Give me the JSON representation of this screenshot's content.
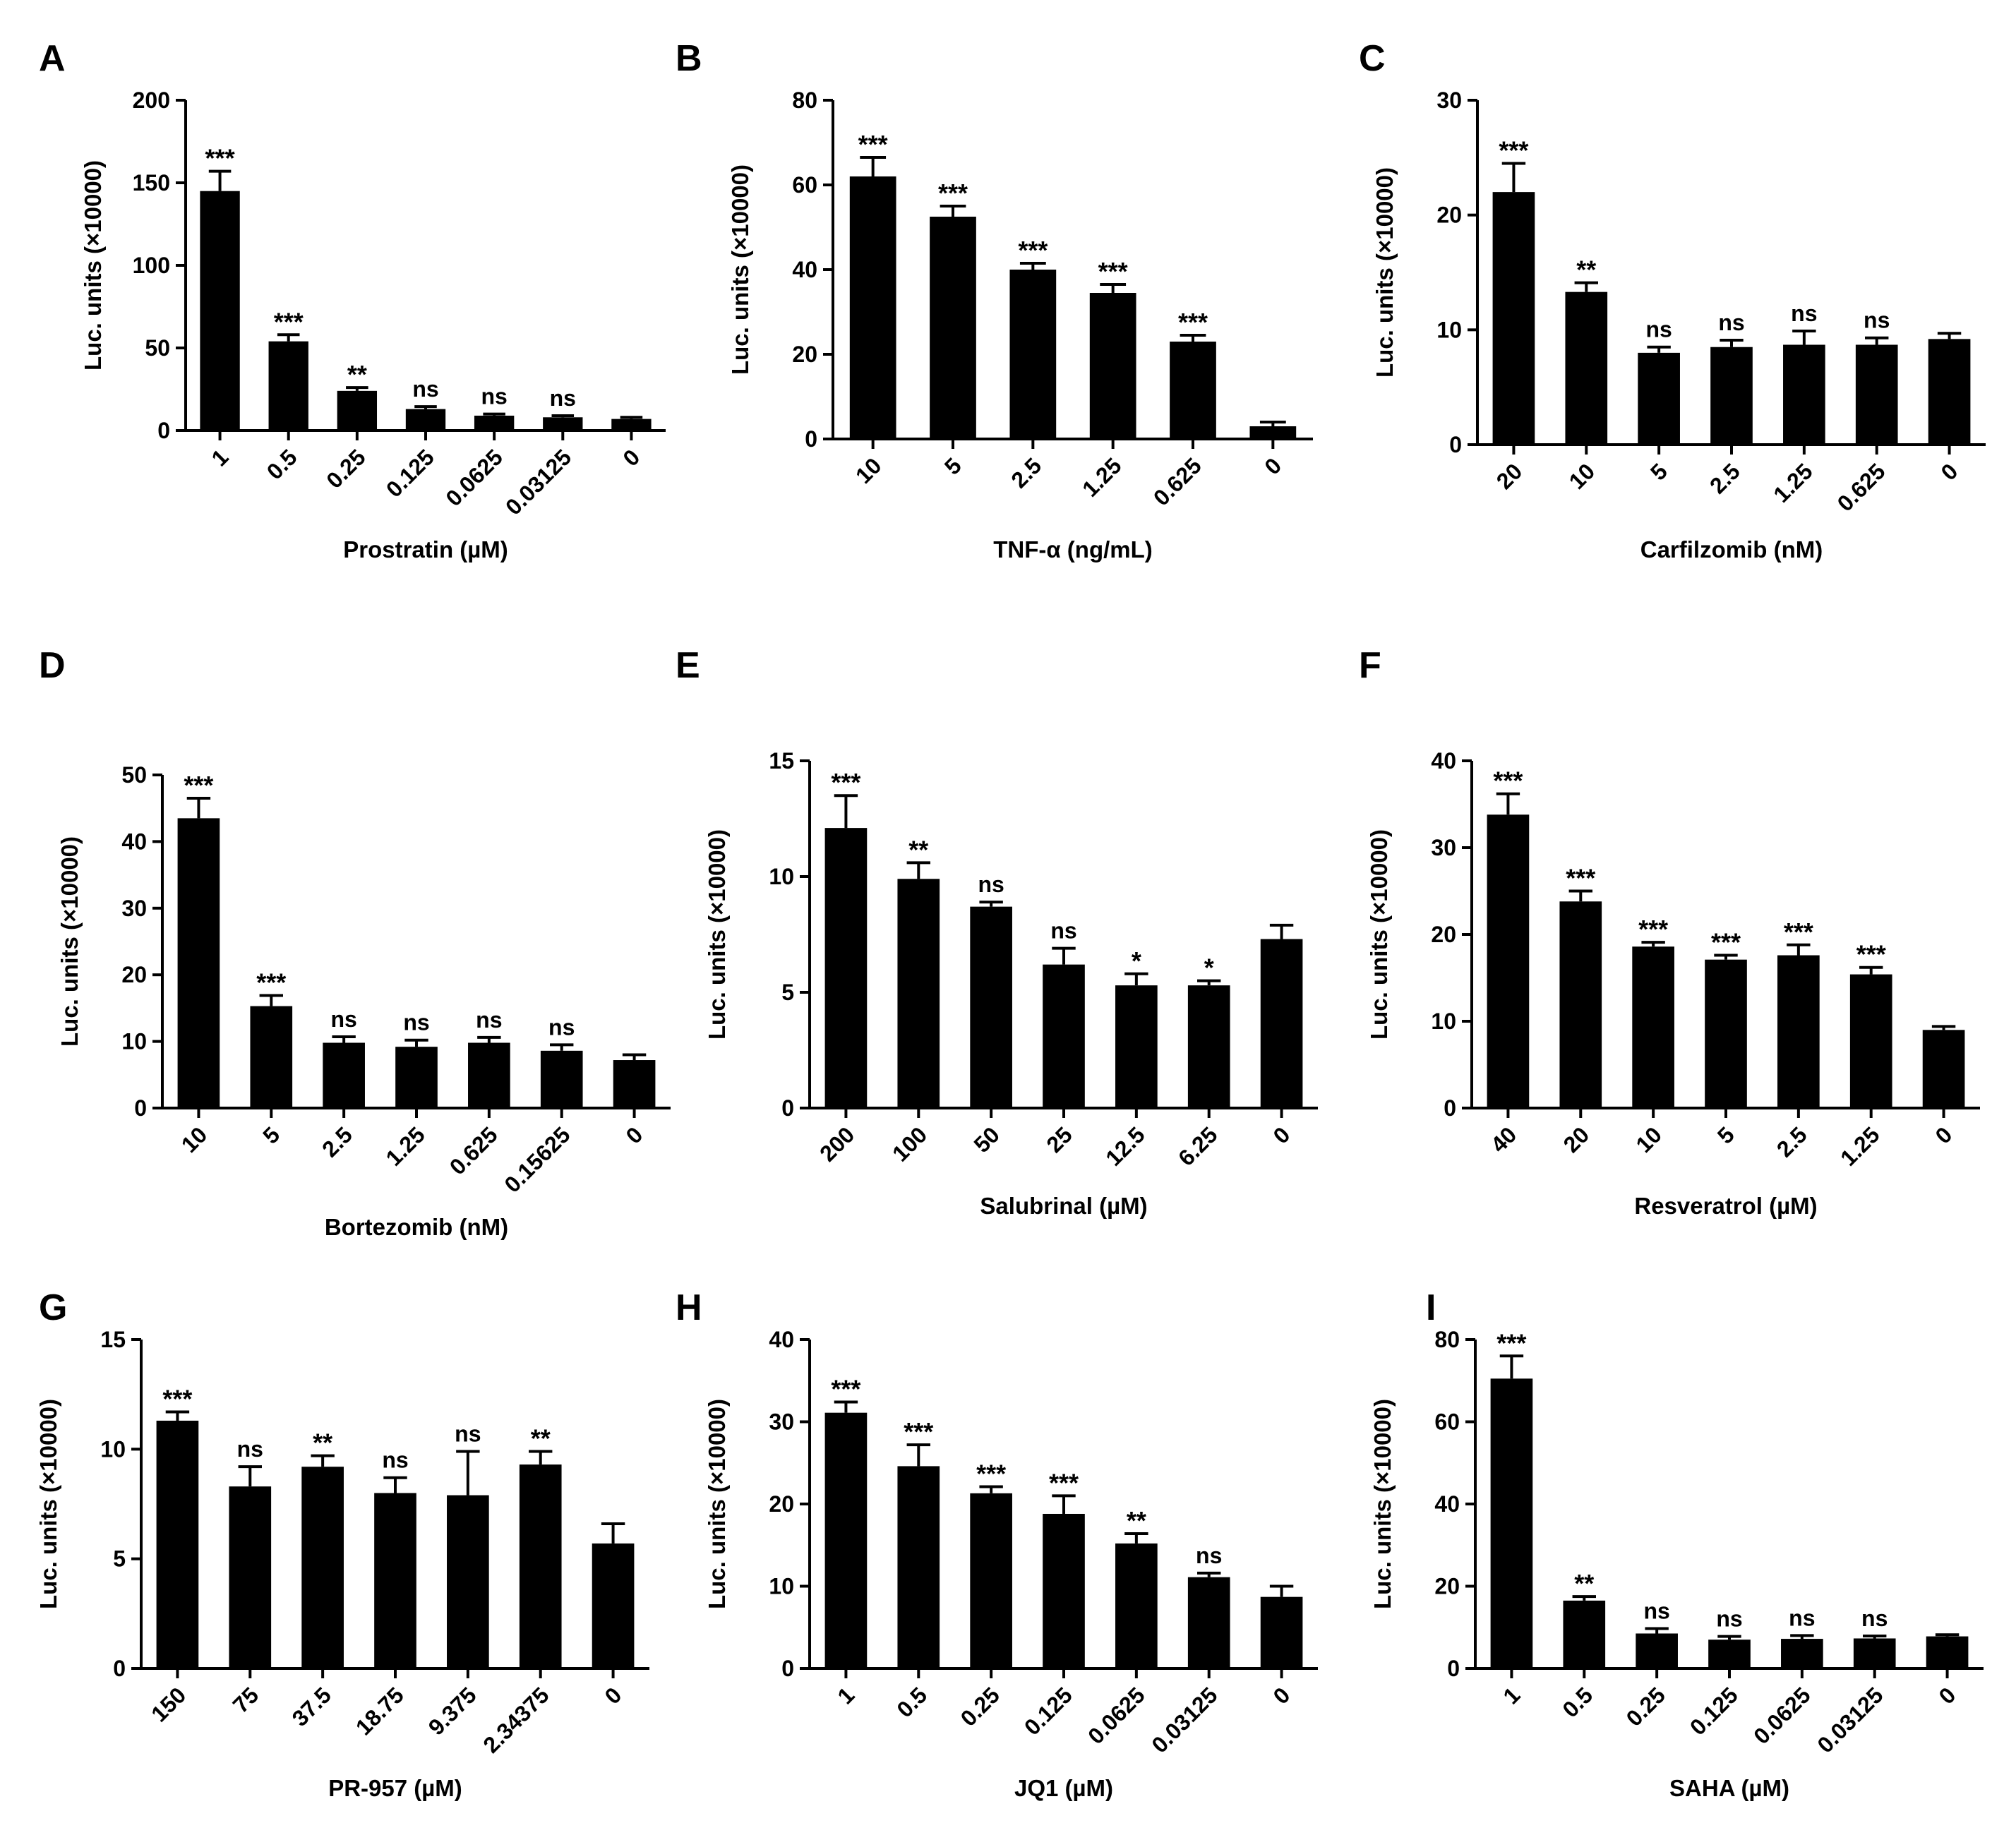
{
  "figure": {
    "ylabel": "Luc. units (×10000)"
  },
  "chart_data": [
    {
      "panel": "A",
      "type": "bar",
      "title": "",
      "xlabel": "Prostratin (µM)",
      "ylabel": "Luc. units (×10000)",
      "ylim": [
        0,
        200
      ],
      "yticks": [
        0,
        50,
        100,
        150,
        200
      ],
      "categories": [
        "1",
        "0.5",
        "0.25",
        "0.125",
        "0.0625",
        "0.03125",
        "0"
      ],
      "values": [
        145,
        54,
        24,
        13,
        9,
        8,
        7
      ],
      "errors": [
        12,
        4,
        2,
        1.5,
        1,
        1,
        1
      ],
      "significance": [
        "***",
        "***",
        "**",
        "ns",
        "ns",
        "ns",
        ""
      ]
    },
    {
      "panel": "B",
      "type": "bar",
      "title": "",
      "xlabel": "TNF-α (ng/mL)",
      "ylabel": "Luc. units (×10000)",
      "ylim": [
        0,
        80
      ],
      "yticks": [
        0,
        20,
        40,
        60,
        80
      ],
      "categories": [
        "10",
        "5",
        "2.5",
        "1.25",
        "0.625",
        "0"
      ],
      "values": [
        62,
        52.5,
        40,
        34.5,
        23,
        3
      ],
      "errors": [
        4.5,
        2.5,
        1.5,
        2,
        1.5,
        1
      ],
      "significance": [
        "***",
        "***",
        "***",
        "***",
        "***",
        ""
      ]
    },
    {
      "panel": "C",
      "type": "bar",
      "title": "",
      "xlabel": "Carfilzomib (nM)",
      "ylabel": "Luc. units (×10000)",
      "ylim": [
        0,
        30
      ],
      "yticks": [
        0,
        10,
        20,
        30
      ],
      "categories": [
        "20",
        "10",
        "5",
        "2.5",
        "1.25",
        "0.625",
        "0"
      ],
      "values": [
        22,
        13.3,
        8,
        8.5,
        8.7,
        8.7,
        9.2
      ],
      "errors": [
        2.5,
        0.8,
        0.5,
        0.6,
        1.2,
        0.6,
        0.5
      ],
      "significance": [
        "***",
        "**",
        "ns",
        "ns",
        "ns",
        "ns",
        ""
      ]
    },
    {
      "panel": "D",
      "type": "bar",
      "title": "",
      "xlabel": "Bortezomib (nM)",
      "ylabel": "Luc. units (×10000)",
      "ylim": [
        0,
        50
      ],
      "yticks": [
        0,
        10,
        20,
        30,
        40,
        50
      ],
      "categories": [
        "10",
        "5",
        "2.5",
        "1.25",
        "0.625",
        "0.15625",
        "0"
      ],
      "values": [
        43.5,
        15.3,
        9.8,
        9.2,
        9.8,
        8.6,
        7.2
      ],
      "errors": [
        3,
        1.6,
        0.9,
        1,
        0.8,
        0.9,
        0.8
      ],
      "significance": [
        "***",
        "***",
        "ns",
        "ns",
        "ns",
        "ns",
        ""
      ]
    },
    {
      "panel": "E",
      "type": "bar",
      "title": "",
      "xlabel": "Salubrinal (µM)",
      "ylabel": "Luc. units (×10000)",
      "ylim": [
        0,
        15
      ],
      "yticks": [
        0,
        5,
        10,
        15
      ],
      "categories": [
        "200",
        "100",
        "50",
        "25",
        "12.5",
        "6.25",
        "0"
      ],
      "values": [
        12.1,
        9.9,
        8.7,
        6.2,
        5.3,
        5.3,
        7.3
      ],
      "errors": [
        1.4,
        0.7,
        0.2,
        0.7,
        0.5,
        0.2,
        0.6
      ],
      "significance": [
        "***",
        "**",
        "ns",
        "ns",
        "*",
        "*",
        ""
      ]
    },
    {
      "panel": "F",
      "type": "bar",
      "title": "",
      "xlabel": "Resveratrol (µM)",
      "ylabel": "Luc. units (×10000)",
      "ylim": [
        0,
        40
      ],
      "yticks": [
        0,
        10,
        20,
        30,
        40
      ],
      "categories": [
        "40",
        "20",
        "10",
        "5",
        "2.5",
        "1.25",
        "0"
      ],
      "values": [
        33.8,
        23.8,
        18.6,
        17.1,
        17.6,
        15.4,
        9
      ],
      "errors": [
        2.4,
        1.2,
        0.5,
        0.5,
        1.2,
        0.8,
        0.4
      ],
      "significance": [
        "***",
        "***",
        "***",
        "***",
        "***",
        "***",
        ""
      ]
    },
    {
      "panel": "G",
      "type": "bar",
      "title": "",
      "xlabel": "PR-957 (µM)",
      "ylabel": "Luc. units (×10000)",
      "ylim": [
        0,
        15
      ],
      "yticks": [
        0,
        5,
        10,
        15
      ],
      "categories": [
        "150",
        "75",
        "37.5",
        "18.75",
        "9.375",
        "2.34375",
        "0"
      ],
      "values": [
        11.3,
        8.3,
        9.2,
        8,
        7.9,
        9.3,
        5.7
      ],
      "errors": [
        0.4,
        0.9,
        0.5,
        0.7,
        2,
        0.6,
        0.9
      ],
      "significance": [
        "***",
        "ns",
        "**",
        "ns",
        "ns",
        "**",
        ""
      ]
    },
    {
      "panel": "H",
      "type": "bar",
      "title": "",
      "xlabel": "JQ1 (µM)",
      "ylabel": "Luc. units (×10000)",
      "ylim": [
        0,
        40
      ],
      "yticks": [
        0,
        10,
        20,
        30,
        40
      ],
      "categories": [
        "1",
        "0.5",
        "0.25",
        "0.125",
        "0.0625",
        "0.03125",
        "0"
      ],
      "values": [
        31.1,
        24.6,
        21.3,
        18.8,
        15.2,
        11.1,
        8.7
      ],
      "errors": [
        1.3,
        2.6,
        0.8,
        2.2,
        1.2,
        0.5,
        1.3
      ],
      "significance": [
        "***",
        "***",
        "***",
        "***",
        "**",
        "ns",
        ""
      ]
    },
    {
      "panel": "I",
      "type": "bar",
      "title": "",
      "xlabel": "SAHA (µM)",
      "ylabel": "Luc. units (×10000)",
      "ylim": [
        0,
        80
      ],
      "yticks": [
        0,
        20,
        40,
        60,
        80
      ],
      "categories": [
        "1",
        "0.5",
        "0.25",
        "0.125",
        "0.0625",
        "0.03125",
        "0"
      ],
      "values": [
        70.5,
        16.5,
        8.5,
        7,
        7.2,
        7.3,
        7.8
      ],
      "errors": [
        5.5,
        1,
        1.2,
        0.8,
        0.8,
        0.6,
        0.4
      ],
      "significance": [
        "***",
        "**",
        "ns",
        "ns",
        "ns",
        "ns",
        ""
      ]
    }
  ]
}
